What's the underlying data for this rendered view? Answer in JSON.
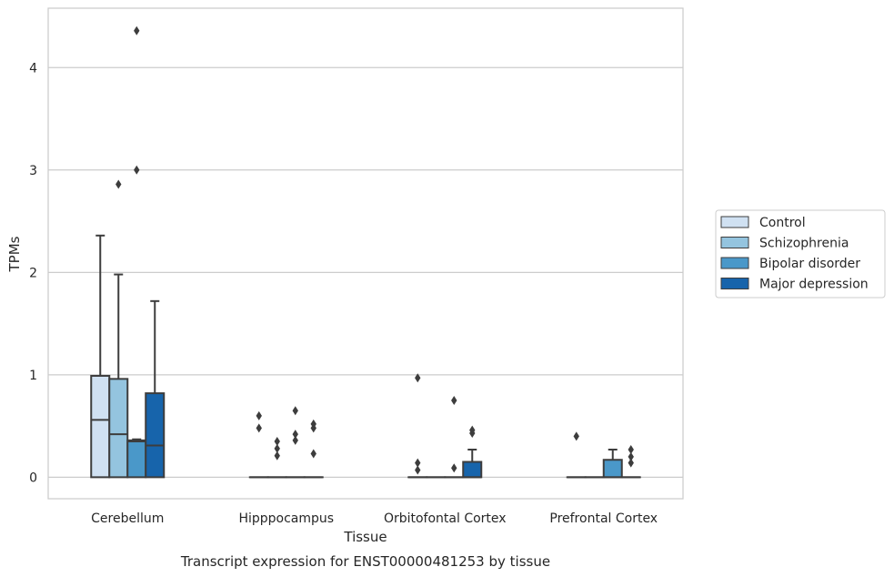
{
  "caption": "Transcript expression for ENST00000481253 by tissue",
  "chart_data": {
    "type": "box",
    "xlabel": "Tissue",
    "ylabel": "TPMs",
    "ylim": [
      -0.21,
      4.58
    ],
    "yticks": [
      0,
      1,
      2,
      3,
      4
    ],
    "categories": [
      "Cerebellum",
      "Hipppocampus",
      "Orbitofontal Cortex",
      "Prefrontal Cortex"
    ],
    "grid": "horizontal",
    "legend_position": "right-center",
    "series": [
      {
        "name": "Control",
        "color": "#d0e1f2",
        "boxes": [
          {
            "q1": 0,
            "median": 0.56,
            "q3": 0.99,
            "whisker_low": 0,
            "whisker_high": 2.36,
            "outliers": []
          },
          {
            "q1": 0,
            "median": 0,
            "q3": 0,
            "whisker_low": 0,
            "whisker_high": 0,
            "outliers": [
              0.48,
              0.6
            ]
          },
          {
            "q1": 0,
            "median": 0,
            "q3": 0,
            "whisker_low": 0,
            "whisker_high": 0,
            "outliers": [
              0.07,
              0.14,
              0.97
            ]
          },
          {
            "q1": 0,
            "median": 0,
            "q3": 0,
            "whisker_low": 0,
            "whisker_high": 0,
            "outliers": [
              0.4
            ]
          }
        ]
      },
      {
        "name": "Schizophrenia",
        "color": "#94c4df",
        "boxes": [
          {
            "q1": 0,
            "median": 0.42,
            "q3": 0.96,
            "whisker_low": 0,
            "whisker_high": 1.98,
            "outliers": [
              2.86
            ]
          },
          {
            "q1": 0,
            "median": 0,
            "q3": 0,
            "whisker_low": 0,
            "whisker_high": 0,
            "outliers": [
              0.21,
              0.28,
              0.35
            ]
          },
          {
            "q1": 0,
            "median": 0,
            "q3": 0,
            "whisker_low": 0,
            "whisker_high": 0,
            "outliers": []
          },
          {
            "q1": 0,
            "median": 0,
            "q3": 0,
            "whisker_low": 0,
            "whisker_high": 0,
            "outliers": []
          }
        ]
      },
      {
        "name": "Bipolar disorder",
        "color": "#4a98c9",
        "boxes": [
          {
            "q1": 0,
            "median": 0.35,
            "q3": 0.36,
            "whisker_low": 0,
            "whisker_high": 0.37,
            "outliers": [
              3.0,
              4.36
            ]
          },
          {
            "q1": 0,
            "median": 0,
            "q3": 0,
            "whisker_low": 0,
            "whisker_high": 0,
            "outliers": [
              0.36,
              0.42,
              0.65
            ]
          },
          {
            "q1": 0,
            "median": 0,
            "q3": 0,
            "whisker_low": 0,
            "whisker_high": 0,
            "outliers": [
              0.09,
              0.75
            ]
          },
          {
            "q1": 0,
            "median": 0,
            "q3": 0.17,
            "whisker_low": 0,
            "whisker_high": 0.27,
            "outliers": []
          }
        ]
      },
      {
        "name": "Major depression",
        "color": "#1764ab",
        "boxes": [
          {
            "q1": 0,
            "median": 0.31,
            "q3": 0.82,
            "whisker_low": 0,
            "whisker_high": 1.72,
            "outliers": []
          },
          {
            "q1": 0,
            "median": 0,
            "q3": 0,
            "whisker_low": 0,
            "whisker_high": 0,
            "outliers": [
              0.23,
              0.48,
              0.52
            ]
          },
          {
            "q1": 0,
            "median": 0,
            "q3": 0.15,
            "whisker_low": 0,
            "whisker_high": 0.27,
            "outliers": [
              0.43,
              0.46
            ]
          },
          {
            "q1": 0,
            "median": 0,
            "q3": 0,
            "whisker_low": 0,
            "whisker_high": 0,
            "outliers": [
              0.14,
              0.2,
              0.27
            ]
          }
        ]
      }
    ]
  }
}
